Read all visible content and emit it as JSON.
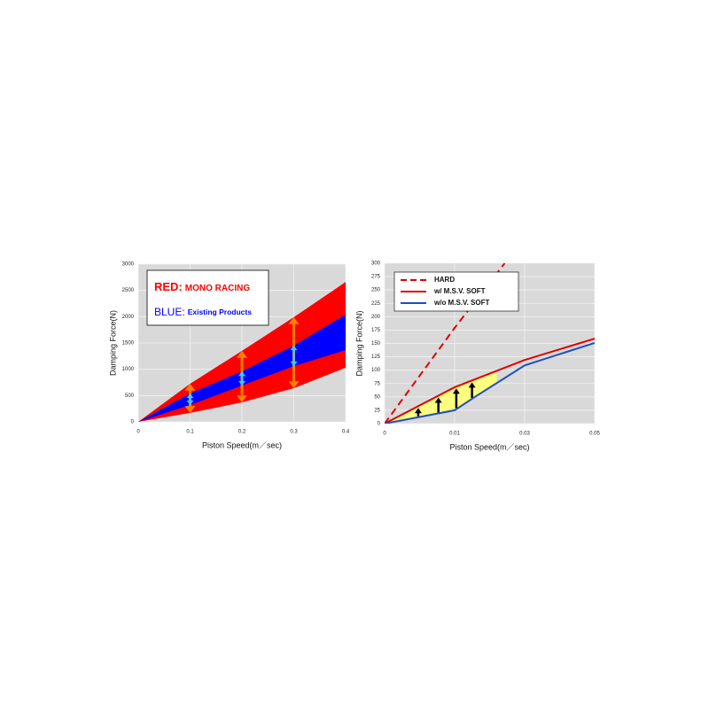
{
  "chart_data": [
    {
      "type": "band",
      "xlabel": "Piston Speed(m／sec)",
      "ylabel": "Damping Force(N)",
      "x": [
        0,
        0.1,
        0.2,
        0.3,
        0.4
      ],
      "xlim": [
        0,
        0.4
      ],
      "xticks": [
        0,
        0.1,
        0.2,
        0.3,
        0.4
      ],
      "ylim": [
        0,
        3000
      ],
      "yticks": [
        0,
        500,
        1000,
        1500,
        2000,
        2500,
        3000
      ],
      "grid": true,
      "series": [
        {
          "key": "RED:",
          "name": "MONO RACING",
          "color": "#ff0000",
          "arrow_color": "#ff8000",
          "upper": [
            0,
            725,
            1350,
            1990,
            2660
          ],
          "lower": [
            0,
            170,
            370,
            640,
            1030
          ]
        },
        {
          "key": "BLUE:",
          "name": "Existing Products",
          "color": "#0000ff",
          "arrow_color": "#33ccff",
          "upper": [
            0,
            540,
            960,
            1450,
            2040
          ],
          "lower": [
            0,
            320,
            690,
            1060,
            1365
          ]
        }
      ]
    },
    {
      "type": "line",
      "xlabel": "Piston Speed(m／sec)",
      "ylabel": "Damping Force(N)",
      "xlim": [
        0,
        0.05
      ],
      "xticks": [
        0,
        0.01,
        0.03,
        0.05
      ],
      "x_scale": "ticks",
      "ylim": [
        0,
        300
      ],
      "yticks": [
        0,
        25,
        50,
        75,
        100,
        125,
        150,
        175,
        200,
        225,
        250,
        275,
        300
      ],
      "grid": true,
      "series": [
        {
          "name": "HARD",
          "color": "#e00000",
          "dashed": true,
          "x": [
            0,
            0.01,
            0.0243
          ],
          "values": [
            0,
            179,
            300
          ]
        },
        {
          "name": "w/ M.S.V.  SOFT",
          "color": "#e00000",
          "dashed": false,
          "x": [
            0,
            0.01,
            0.03,
            0.05
          ],
          "values": [
            0,
            68,
            119,
            159
          ]
        },
        {
          "name": "w/o M.S.V.  SOFT",
          "color": "#1a50c0",
          "dashed": false,
          "x": [
            0,
            0.01,
            0.0158,
            0.03,
            0.05
          ],
          "values": [
            0,
            25,
            50,
            109,
            151
          ]
        }
      ],
      "highlight": {
        "color": "#ffff80",
        "xlim": [
          0,
          0.022
        ]
      }
    }
  ]
}
